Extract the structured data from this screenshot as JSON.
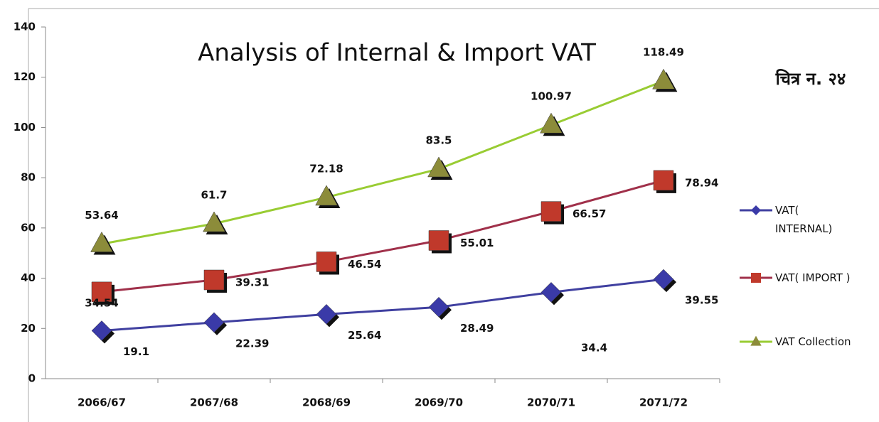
{
  "chart_data": {
    "type": "line",
    "title": "Analysis of Internal & Import VAT",
    "annotation": "चित्र न. २४",
    "categories": [
      "2066/67",
      "2067/68",
      "2068/69",
      "2069/70",
      "2070/71",
      "2071/72"
    ],
    "series": [
      {
        "name": "VAT( INTERNAL)",
        "color": "#4040a0",
        "marker_color": "#3a3aa8",
        "marker": "diamond",
        "values": [
          19.1,
          22.39,
          25.64,
          28.49,
          34.4,
          39.55
        ]
      },
      {
        "name": "VAT( IMPORT )",
        "color": "#a0304a",
        "marker_color": "#c0392b",
        "marker": "square",
        "values": [
          34.54,
          39.31,
          46.54,
          55.01,
          66.57,
          78.94
        ]
      },
      {
        "name": "VAT Collection",
        "color": "#99cc33",
        "marker_color": "#8c8c3a",
        "marker": "triangle",
        "values": [
          53.64,
          61.7,
          72.18,
          83.5,
          100.97,
          118.49
        ]
      }
    ],
    "ylim": [
      0,
      140
    ],
    "yticks": [
      0,
      20,
      40,
      60,
      80,
      100,
      120,
      140
    ]
  }
}
